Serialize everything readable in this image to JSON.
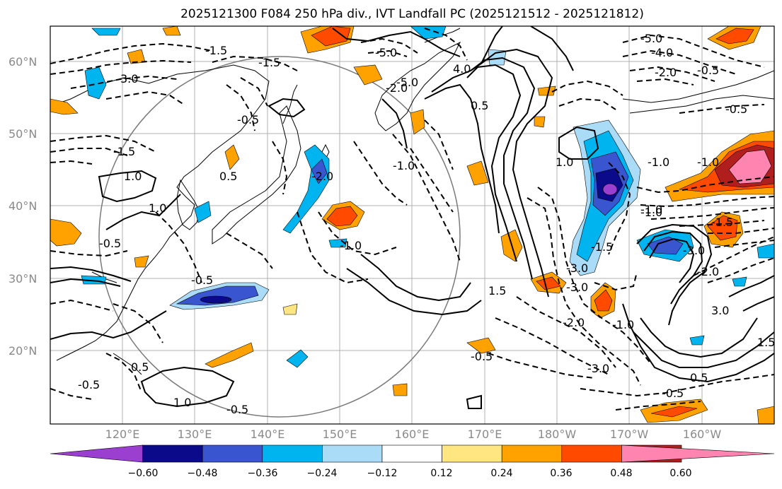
{
  "title": "2025121300 F084 250 hPa div., IVT Landfall PC (2025121512 - 2025121812)",
  "lat_labels": [
    "60°N",
    "50°N",
    "40°N",
    "30°N",
    "20°N"
  ],
  "lon_labels": [
    "120°E",
    "130°E",
    "140°E",
    "150°E",
    "160°E",
    "170°E",
    "180°W",
    "170°W",
    "160°W"
  ],
  "colorbar": {
    "colors": [
      "#9a3fd0",
      "#0a0a8a",
      "#3a55d0",
      "#00b4f0",
      "#aadcf8",
      "#ffffff",
      "#ffe680",
      "#ffa200",
      "#ff4a00",
      "#b01e1e",
      "#ff85b0"
    ],
    "ticks": [
      "−0.60",
      "−0.48",
      "−0.36",
      "−0.24",
      "−0.12",
      "0.12",
      "0.24",
      "0.36",
      "0.48",
      "0.60"
    ]
  },
  "contour_labels": [
    "-1.5",
    "-1.5",
    "3.0",
    "-5.0",
    "-5.0",
    "4.0",
    "-5.0",
    "-4.0",
    "-2.0",
    "-0.5",
    "-0.5",
    "-1.0",
    "-1.5",
    "1.0",
    "1.0",
    "-0.5",
    "-1.0",
    "-1.0",
    "1.5",
    "-2.0",
    "-1.0",
    "1.0",
    "0.5",
    "-1.0",
    "-1.0",
    "-0.5",
    "-1.5",
    "-3.0",
    "-3.0",
    "1.5",
    "0.5",
    "-3.0",
    "-2.0",
    "-1.0",
    "-2.0",
    "3.0",
    "-1.5",
    "0.5",
    "-0.5",
    "1.0",
    "-0.5",
    "-0.5",
    "0.5",
    "-0.5",
    "-0.5",
    "-2.0",
    "-3.0"
  ]
}
